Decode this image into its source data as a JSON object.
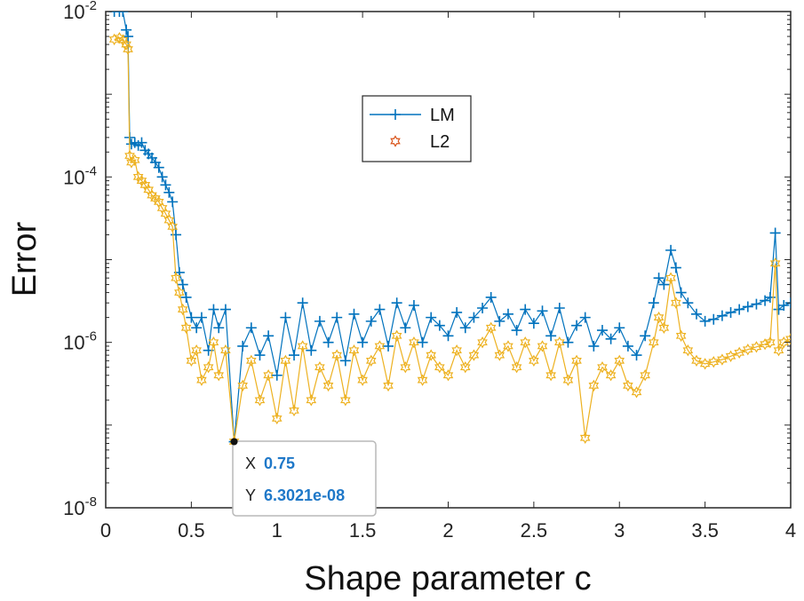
{
  "chart_data": {
    "type": "line",
    "xlabel": "Shape parameter c",
    "ylabel": "Error",
    "xlim": [
      0,
      4
    ],
    "ylim": [
      1e-08,
      0.01
    ],
    "yscale": "log",
    "xticks": [
      0,
      0.5,
      1,
      1.5,
      2,
      2.5,
      3,
      3.5,
      4
    ],
    "xtick_labels": [
      "0",
      "0.5",
      "1",
      "1.5",
      "2",
      "2.5",
      "3",
      "3.5",
      "4"
    ],
    "yticks": [
      {
        "value": 1e-08,
        "base": "10",
        "exp": "-8"
      },
      {
        "value": 1e-06,
        "base": "10",
        "exp": "-6"
      },
      {
        "value": 0.0001,
        "base": "10",
        "exp": "-4"
      },
      {
        "value": 0.01,
        "base": "10",
        "exp": "-2"
      }
    ],
    "grid": false,
    "legend_position": "upper-center",
    "series": [
      {
        "name": "LM",
        "color": "#0072BD",
        "marker": "plus",
        "points": [
          [
            0.05,
            0.01
          ],
          [
            0.08,
            0.01
          ],
          [
            0.1,
            0.01
          ],
          [
            0.12,
            0.006
          ],
          [
            0.13,
            0.005
          ],
          [
            0.14,
            0.0003
          ],
          [
            0.15,
            0.00025
          ],
          [
            0.17,
            0.00026
          ],
          [
            0.19,
            0.00024
          ],
          [
            0.21,
            0.00026
          ],
          [
            0.23,
            0.00021
          ],
          [
            0.25,
            0.00019
          ],
          [
            0.27,
            0.00017
          ],
          [
            0.29,
            0.00015
          ],
          [
            0.31,
            0.00013
          ],
          [
            0.33,
            0.0001
          ],
          [
            0.35,
            8e-05
          ],
          [
            0.37,
            6.5e-05
          ],
          [
            0.39,
            5e-05
          ],
          [
            0.41,
            2e-05
          ],
          [
            0.43,
            7e-06
          ],
          [
            0.45,
            5e-06
          ],
          [
            0.47,
            3.5e-06
          ],
          [
            0.5,
            2e-06
          ],
          [
            0.53,
            1.5e-06
          ],
          [
            0.56,
            2e-06
          ],
          [
            0.6,
            8e-07
          ],
          [
            0.63,
            2.5e-06
          ],
          [
            0.66,
            1.5e-06
          ],
          [
            0.7,
            2.5e-06
          ],
          [
            0.75,
            6.3021e-08
          ],
          [
            0.8,
            9e-07
          ],
          [
            0.85,
            1.5e-06
          ],
          [
            0.9,
            7e-07
          ],
          [
            0.95,
            1.2e-06
          ],
          [
            1.0,
            4e-07
          ],
          [
            1.05,
            2e-06
          ],
          [
            1.1,
            7e-07
          ],
          [
            1.15,
            3e-06
          ],
          [
            1.2,
            8e-07
          ],
          [
            1.25,
            1.8e-06
          ],
          [
            1.3,
            1e-06
          ],
          [
            1.35,
            2e-06
          ],
          [
            1.4,
            6e-07
          ],
          [
            1.45,
            2.2e-06
          ],
          [
            1.5,
            1e-06
          ],
          [
            1.55,
            1.8e-06
          ],
          [
            1.6,
            2.5e-06
          ],
          [
            1.65,
            9e-07
          ],
          [
            1.7,
            3e-06
          ],
          [
            1.75,
            1.5e-06
          ],
          [
            1.8,
            2.8e-06
          ],
          [
            1.85,
            1e-06
          ],
          [
            1.9,
            2e-06
          ],
          [
            1.95,
            1.6e-06
          ],
          [
            2.0,
            1.2e-06
          ],
          [
            2.05,
            2.3e-06
          ],
          [
            2.1,
            1.5e-06
          ],
          [
            2.15,
            2e-06
          ],
          [
            2.2,
            2.6e-06
          ],
          [
            2.25,
            3.5e-06
          ],
          [
            2.3,
            1.8e-06
          ],
          [
            2.35,
            2.2e-06
          ],
          [
            2.4,
            1.4e-06
          ],
          [
            2.45,
            2.5e-06
          ],
          [
            2.5,
            1.7e-06
          ],
          [
            2.55,
            2.4e-06
          ],
          [
            2.6,
            1.2e-06
          ],
          [
            2.65,
            2.6e-06
          ],
          [
            2.7,
            1e-06
          ],
          [
            2.75,
            1.6e-06
          ],
          [
            2.8,
            2e-06
          ],
          [
            2.85,
            9e-07
          ],
          [
            2.9,
            1.4e-06
          ],
          [
            2.95,
            1.1e-06
          ],
          [
            3.0,
            1.5e-06
          ],
          [
            3.05,
            9e-07
          ],
          [
            3.1,
            7e-07
          ],
          [
            3.15,
            1.2e-06
          ],
          [
            3.2,
            3e-06
          ],
          [
            3.23,
            6e-06
          ],
          [
            3.26,
            5e-06
          ],
          [
            3.3,
            1.3e-05
          ],
          [
            3.33,
            8e-06
          ],
          [
            3.36,
            4e-06
          ],
          [
            3.4,
            3e-06
          ],
          [
            3.45,
            2.2e-06
          ],
          [
            3.5,
            1.8e-06
          ],
          [
            3.55,
            1.9e-06
          ],
          [
            3.6,
            2.1e-06
          ],
          [
            3.65,
            2.3e-06
          ],
          [
            3.7,
            2.5e-06
          ],
          [
            3.75,
            2.7e-06
          ],
          [
            3.8,
            2.9e-06
          ],
          [
            3.85,
            3.2e-06
          ],
          [
            3.88,
            3.5e-06
          ],
          [
            3.91,
            2.1e-05
          ],
          [
            3.93,
            2.5e-06
          ],
          [
            3.96,
            2.8e-06
          ],
          [
            4.0,
            3e-06
          ]
        ]
      },
      {
        "name": "L2",
        "color": "#EDB120",
        "marker": "hexagram",
        "points": [
          [
            0.05,
            0.0046
          ],
          [
            0.08,
            0.0048
          ],
          [
            0.1,
            0.0045
          ],
          [
            0.12,
            0.004
          ],
          [
            0.13,
            0.0035
          ],
          [
            0.14,
            0.00018
          ],
          [
            0.15,
            0.00015
          ],
          [
            0.17,
            0.00016
          ],
          [
            0.19,
            0.0001
          ],
          [
            0.21,
            9e-05
          ],
          [
            0.23,
            8e-05
          ],
          [
            0.25,
            7e-05
          ],
          [
            0.27,
            6e-05
          ],
          [
            0.29,
            5.5e-05
          ],
          [
            0.31,
            5e-05
          ],
          [
            0.33,
            4.2e-05
          ],
          [
            0.35,
            3.6e-05
          ],
          [
            0.37,
            3e-05
          ],
          [
            0.39,
            2.5e-05
          ],
          [
            0.41,
            6e-06
          ],
          [
            0.43,
            4e-06
          ],
          [
            0.45,
            2.5e-06
          ],
          [
            0.47,
            1.5e-06
          ],
          [
            0.5,
            6e-07
          ],
          [
            0.53,
            8e-07
          ],
          [
            0.56,
            3.5e-07
          ],
          [
            0.6,
            5e-07
          ],
          [
            0.63,
            1e-06
          ],
          [
            0.66,
            4e-07
          ],
          [
            0.7,
            8e-07
          ],
          [
            0.75,
            6.3021e-08
          ],
          [
            0.8,
            3e-07
          ],
          [
            0.85,
            6e-07
          ],
          [
            0.9,
            2e-07
          ],
          [
            0.95,
            4e-07
          ],
          [
            1.0,
            1.2e-07
          ],
          [
            1.05,
            6e-07
          ],
          [
            1.1,
            1.5e-07
          ],
          [
            1.15,
            9e-07
          ],
          [
            1.2,
            2e-07
          ],
          [
            1.25,
            5e-07
          ],
          [
            1.3,
            3e-07
          ],
          [
            1.35,
            7e-07
          ],
          [
            1.4,
            2e-07
          ],
          [
            1.45,
            8e-07
          ],
          [
            1.5,
            3.5e-07
          ],
          [
            1.55,
            6e-07
          ],
          [
            1.6,
            9e-07
          ],
          [
            1.65,
            3e-07
          ],
          [
            1.7,
            1.2e-06
          ],
          [
            1.75,
            5e-07
          ],
          [
            1.8,
            1e-06
          ],
          [
            1.85,
            3.5e-07
          ],
          [
            1.9,
            7e-07
          ],
          [
            1.95,
            5e-07
          ],
          [
            2.0,
            4e-07
          ],
          [
            2.05,
            8e-07
          ],
          [
            2.1,
            5e-07
          ],
          [
            2.15,
            7e-07
          ],
          [
            2.2,
            1e-06
          ],
          [
            2.25,
            1.5e-06
          ],
          [
            2.3,
            7e-07
          ],
          [
            2.35,
            9e-07
          ],
          [
            2.4,
            5e-07
          ],
          [
            2.45,
            1e-06
          ],
          [
            2.5,
            6e-07
          ],
          [
            2.55,
            9e-07
          ],
          [
            2.6,
            4e-07
          ],
          [
            2.65,
            1e-06
          ],
          [
            2.7,
            3.5e-07
          ],
          [
            2.75,
            6e-07
          ],
          [
            2.8,
            7e-08
          ],
          [
            2.85,
            3e-07
          ],
          [
            2.9,
            5e-07
          ],
          [
            2.95,
            4e-07
          ],
          [
            3.0,
            6e-07
          ],
          [
            3.05,
            3e-07
          ],
          [
            3.1,
            2.5e-07
          ],
          [
            3.15,
            4e-07
          ],
          [
            3.2,
            1e-06
          ],
          [
            3.23,
            2e-06
          ],
          [
            3.26,
            1.5e-06
          ],
          [
            3.3,
            6e-06
          ],
          [
            3.33,
            3e-06
          ],
          [
            3.36,
            1.2e-06
          ],
          [
            3.4,
            8e-07
          ],
          [
            3.45,
            6e-07
          ],
          [
            3.5,
            5.5e-07
          ],
          [
            3.55,
            5.8e-07
          ],
          [
            3.6,
            6.2e-07
          ],
          [
            3.65,
            6.8e-07
          ],
          [
            3.7,
            7.5e-07
          ],
          [
            3.75,
            8.2e-07
          ],
          [
            3.8,
            8.8e-07
          ],
          [
            3.85,
            9.5e-07
          ],
          [
            3.88,
            1e-06
          ],
          [
            3.91,
            9e-06
          ],
          [
            3.93,
            8e-07
          ],
          [
            3.96,
            1e-06
          ],
          [
            4.0,
            1.1e-06
          ]
        ]
      }
    ],
    "datatip": {
      "x_label": "X",
      "x_value": "0.75",
      "y_label": "Y",
      "y_value": "6.3021e-08",
      "point": [
        0.75,
        6.3021e-08
      ],
      "value_color": "#1f78c8"
    }
  }
}
